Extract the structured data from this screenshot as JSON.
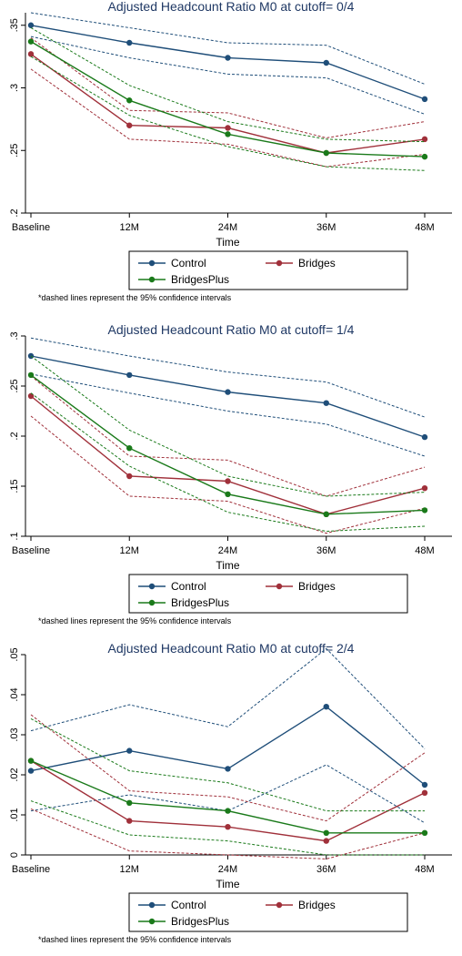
{
  "chart_data": [
    {
      "type": "line",
      "title": "Adjusted Headcount Ratio M0 at cutoff= 0/4",
      "xlabel": "Time",
      "ylabel": "",
      "categories": [
        "Baseline",
        "12M",
        "24M",
        "36M",
        "48M"
      ],
      "ylim": [
        0.2,
        0.36
      ],
      "yticks": [
        0.2,
        0.25,
        0.3,
        0.35
      ],
      "ytick_labels": [
        ".2",
        ".25",
        ".3",
        ".35"
      ],
      "grid": false,
      "legend_position": "bottom",
      "series": [
        {
          "name": "Control",
          "color": "#1f4e79",
          "values": [
            0.35,
            0.336,
            0.324,
            0.32,
            0.291
          ],
          "ci_low": [
            0.341,
            0.324,
            0.311,
            0.308,
            0.279
          ],
          "ci_high": [
            0.36,
            0.348,
            0.336,
            0.334,
            0.303
          ]
        },
        {
          "name": "Bridges",
          "color": "#a0303a",
          "values": [
            0.327,
            0.27,
            0.268,
            0.248,
            0.259
          ],
          "ci_low": [
            0.315,
            0.259,
            0.255,
            0.237,
            0.247
          ],
          "ci_high": [
            0.34,
            0.282,
            0.28,
            0.26,
            0.273
          ]
        },
        {
          "name": "BridgesPlus",
          "color": "#1a7a1a",
          "values": [
            0.337,
            0.29,
            0.263,
            0.248,
            0.245
          ],
          "ci_low": [
            0.325,
            0.278,
            0.253,
            0.237,
            0.234
          ],
          "ci_high": [
            0.348,
            0.302,
            0.273,
            0.259,
            0.257
          ]
        }
      ],
      "note": "*dashed lines represent the 95% confidence intervals"
    },
    {
      "type": "line",
      "title": "Adjusted Headcount Ratio M0 at cutoff= 1/4",
      "xlabel": "Time",
      "ylabel": "",
      "categories": [
        "Baseline",
        "12M",
        "24M",
        "36M",
        "48M"
      ],
      "ylim": [
        0.1,
        0.3
      ],
      "yticks": [
        0.1,
        0.15,
        0.2,
        0.25,
        0.3
      ],
      "ytick_labels": [
        ".1",
        ".15",
        ".2",
        ".25",
        ".3"
      ],
      "grid": false,
      "legend_position": "bottom",
      "series": [
        {
          "name": "Control",
          "color": "#1f4e79",
          "values": [
            0.28,
            0.261,
            0.244,
            0.233,
            0.199
          ],
          "ci_low": [
            0.262,
            0.243,
            0.225,
            0.212,
            0.18
          ],
          "ci_high": [
            0.298,
            0.28,
            0.264,
            0.254,
            0.219
          ]
        },
        {
          "name": "Bridges",
          "color": "#a0303a",
          "values": [
            0.24,
            0.16,
            0.155,
            0.122,
            0.148
          ],
          "ci_low": [
            0.22,
            0.14,
            0.135,
            0.103,
            0.128
          ],
          "ci_high": [
            0.26,
            0.18,
            0.176,
            0.14,
            0.169
          ]
        },
        {
          "name": "BridgesPlus",
          "color": "#1a7a1a",
          "values": [
            0.261,
            0.188,
            0.142,
            0.122,
            0.126
          ],
          "ci_low": [
            0.243,
            0.17,
            0.124,
            0.105,
            0.11
          ],
          "ci_high": [
            0.28,
            0.206,
            0.16,
            0.14,
            0.144
          ]
        }
      ],
      "note": "*dashed lines represent the 95% confidence intervals"
    },
    {
      "type": "line",
      "title": "Adjusted Headcount Ratio M0 at cutoff= 2/4",
      "xlabel": "Time",
      "ylabel": "",
      "categories": [
        "Baseline",
        "12M",
        "24M",
        "36M",
        "48M"
      ],
      "ylim": [
        0,
        0.05
      ],
      "yticks": [
        0,
        0.01,
        0.02,
        0.03,
        0.04,
        0.05
      ],
      "ytick_labels": [
        "0",
        ".01",
        ".02",
        ".03",
        ".04",
        ".05"
      ],
      "grid": false,
      "legend_position": "bottom",
      "series": [
        {
          "name": "Control",
          "color": "#1f4e79",
          "values": [
            0.021,
            0.026,
            0.0215,
            0.037,
            0.0175
          ],
          "ci_low": [
            0.011,
            0.015,
            0.011,
            0.0225,
            0.008
          ],
          "ci_high": [
            0.031,
            0.0375,
            0.032,
            0.0515,
            0.0265
          ]
        },
        {
          "name": "Bridges",
          "color": "#a0303a",
          "values": [
            0.0235,
            0.0085,
            0.007,
            0.0035,
            0.0155
          ],
          "ci_low": [
            0.0115,
            0.001,
            0.0,
            -0.001,
            0.0055
          ],
          "ci_high": [
            0.035,
            0.016,
            0.0145,
            0.0085,
            0.0255
          ]
        },
        {
          "name": "BridgesPlus",
          "color": "#1a7a1a",
          "values": [
            0.0235,
            0.013,
            0.011,
            0.0055,
            0.0055
          ],
          "ci_low": [
            0.0135,
            0.005,
            0.0035,
            0.0,
            0.0
          ],
          "ci_high": [
            0.034,
            0.021,
            0.018,
            0.011,
            0.011
          ]
        }
      ],
      "note": "*dashed lines represent the 95% confidence intervals"
    }
  ]
}
